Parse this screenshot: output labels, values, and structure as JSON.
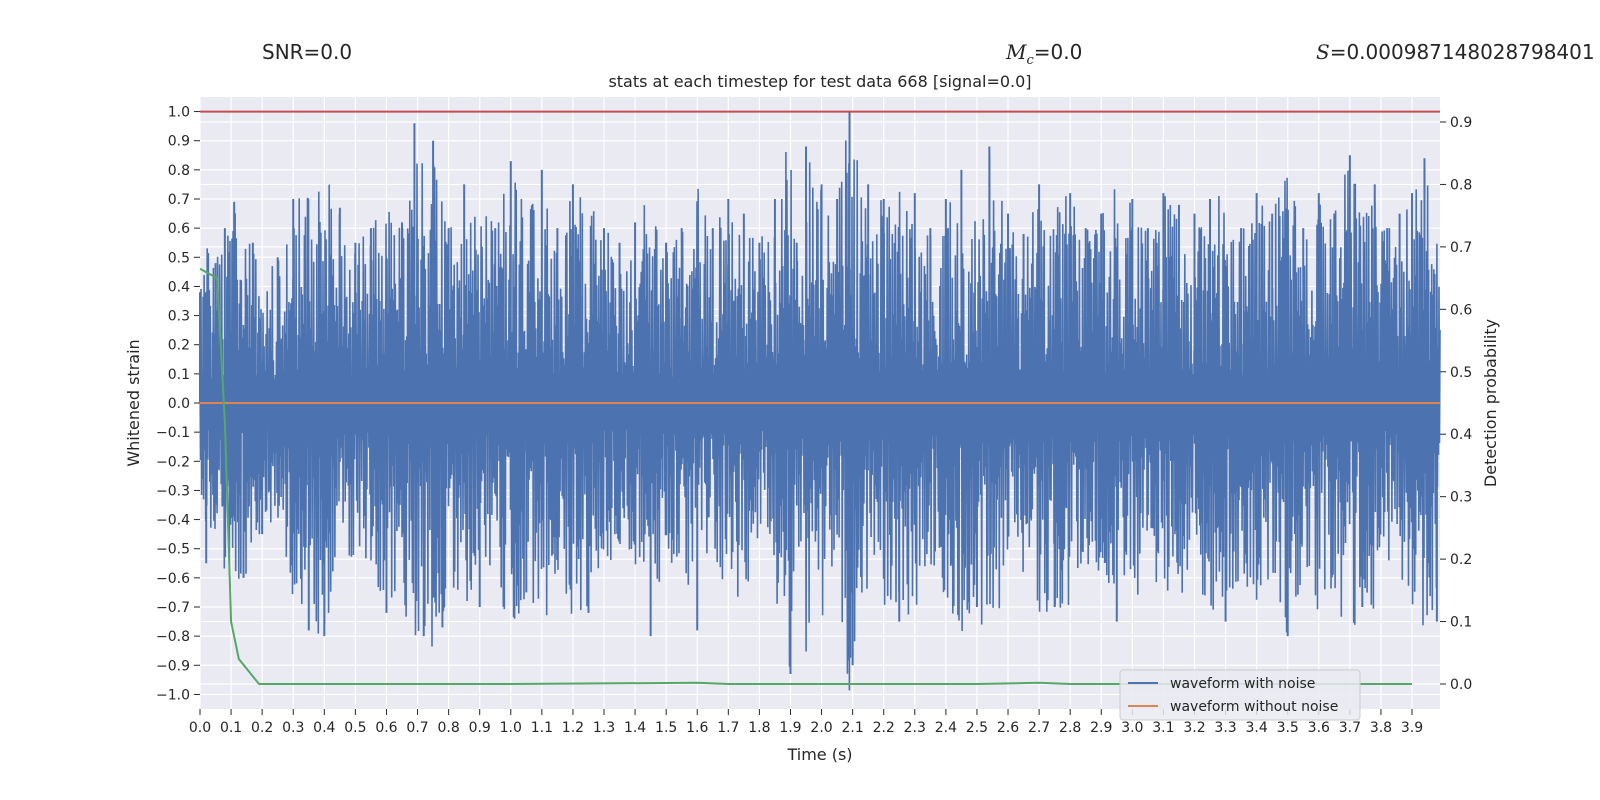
{
  "header": {
    "snr_label": "SNR=0.0",
    "mc_symbol": "M",
    "mc_sub": "c",
    "mc_value": "=0.0",
    "s_symbol": "S",
    "s_value": "=0.000987148028798401"
  },
  "chart_data": {
    "type": "line",
    "title": "stats at each timestep for test data 668 [signal=0.0]",
    "xlabel": "Time (s)",
    "ylabel": "Whitened strain",
    "y2label": "Detection probability",
    "xlim": [
      0.0,
      3.99
    ],
    "ylim": [
      -1.05,
      1.05
    ],
    "y2lim": [
      -0.04,
      0.94
    ],
    "xticks": [
      0.0,
      0.1,
      0.2,
      0.3,
      0.4,
      0.5,
      0.6,
      0.7,
      0.8,
      0.9,
      1.0,
      1.1,
      1.2,
      1.3,
      1.4,
      1.5,
      1.6,
      1.7,
      1.8,
      1.9,
      2.0,
      2.1,
      2.2,
      2.3,
      2.4,
      2.5,
      2.6,
      2.7,
      2.8,
      2.9,
      3.0,
      3.1,
      3.2,
      3.3,
      3.4,
      3.5,
      3.6,
      3.7,
      3.8,
      3.9
    ],
    "yticks": [
      1.0,
      0.9,
      0.8,
      0.7,
      0.6,
      0.5,
      0.4,
      0.3,
      0.2,
      0.1,
      0.0,
      -0.1,
      -0.2,
      -0.3,
      -0.4,
      -0.5,
      -0.6,
      -0.7,
      -0.8,
      -0.9,
      -1.0
    ],
    "y2ticks": [
      0.9,
      0.8,
      0.7,
      0.6,
      0.5,
      0.4,
      0.3,
      0.2,
      0.1,
      0.0
    ],
    "grid": true,
    "legend_position": "lower-right",
    "threshold": 1.0,
    "series": [
      {
        "name": "waveform with noise",
        "color": "#4c72b0",
        "axis": "left",
        "x": [
          0.0,
          0.02,
          0.05,
          0.08,
          0.11,
          0.14,
          0.17,
          0.2,
          0.25,
          0.3,
          0.35,
          0.4,
          0.45,
          0.5,
          0.55,
          0.6,
          0.65,
          0.69,
          0.72,
          0.75,
          0.78,
          0.8,
          0.85,
          0.9,
          0.95,
          1.0,
          1.05,
          1.1,
          1.15,
          1.2,
          1.25,
          1.3,
          1.35,
          1.4,
          1.45,
          1.5,
          1.55,
          1.6,
          1.65,
          1.7,
          1.75,
          1.8,
          1.85,
          1.9,
          1.92,
          1.95,
          2.0,
          2.05,
          2.09,
          2.1,
          2.15,
          2.2,
          2.25,
          2.3,
          2.35,
          2.4,
          2.45,
          2.5,
          2.54,
          2.6,
          2.65,
          2.7,
          2.75,
          2.8,
          2.85,
          2.9,
          2.95,
          3.0,
          3.05,
          3.1,
          3.15,
          3.2,
          3.25,
          3.3,
          3.35,
          3.4,
          3.45,
          3.5,
          3.55,
          3.6,
          3.65,
          3.7,
          3.74,
          3.78,
          3.82,
          3.86,
          3.9,
          3.94,
          3.98
        ],
        "values": [
          0.38,
          -0.55,
          0.48,
          0.6,
          0.69,
          -0.6,
          0.55,
          -0.45,
          0.5,
          0.7,
          -0.78,
          -0.8,
          0.67,
          0.55,
          0.6,
          -0.72,
          0.62,
          0.96,
          -0.8,
          0.9,
          -0.77,
          0.6,
          0.75,
          -0.7,
          0.6,
          0.83,
          -0.65,
          0.8,
          0.6,
          0.75,
          -0.72,
          0.6,
          0.55,
          0.62,
          -0.8,
          0.55,
          0.6,
          -0.78,
          0.6,
          0.7,
          0.65,
          0.55,
          0.7,
          -0.93,
          0.55,
          0.88,
          0.75,
          0.7,
          1.0,
          -0.9,
          0.75,
          0.7,
          -0.75,
          0.72,
          0.6,
          0.7,
          0.8,
          -0.7,
          0.88,
          0.65,
          0.58,
          0.75,
          -0.7,
          0.72,
          0.6,
          0.65,
          -0.75,
          0.7,
          0.6,
          0.72,
          0.68,
          0.65,
          0.7,
          -0.75,
          0.6,
          0.72,
          0.65,
          -0.8,
          0.6,
          0.72,
          0.65,
          0.85,
          -0.7,
          0.75,
          0.6,
          0.65,
          0.72,
          0.84,
          -0.75
        ]
      },
      {
        "name": "waveform without noise",
        "color": "#dd8452",
        "axis": "left",
        "x": [
          0.0,
          3.99
        ],
        "values": [
          0.0,
          0.0
        ]
      },
      {
        "name": "",
        "color": "#55a868",
        "axis": "right",
        "x": [
          0.0,
          0.055,
          0.08,
          0.1,
          0.125,
          0.19,
          0.5,
          1.0,
          1.6,
          1.7,
          2.0,
          2.5,
          2.7,
          2.8,
          3.3,
          3.5,
          3.9
        ],
        "values": [
          0.665,
          0.65,
          0.42,
          0.1,
          0.04,
          0.0,
          0.0,
          0.0,
          0.002,
          0.0,
          0.0,
          0.0,
          0.002,
          0.0,
          0.0,
          0.0,
          0.0
        ]
      }
    ]
  }
}
